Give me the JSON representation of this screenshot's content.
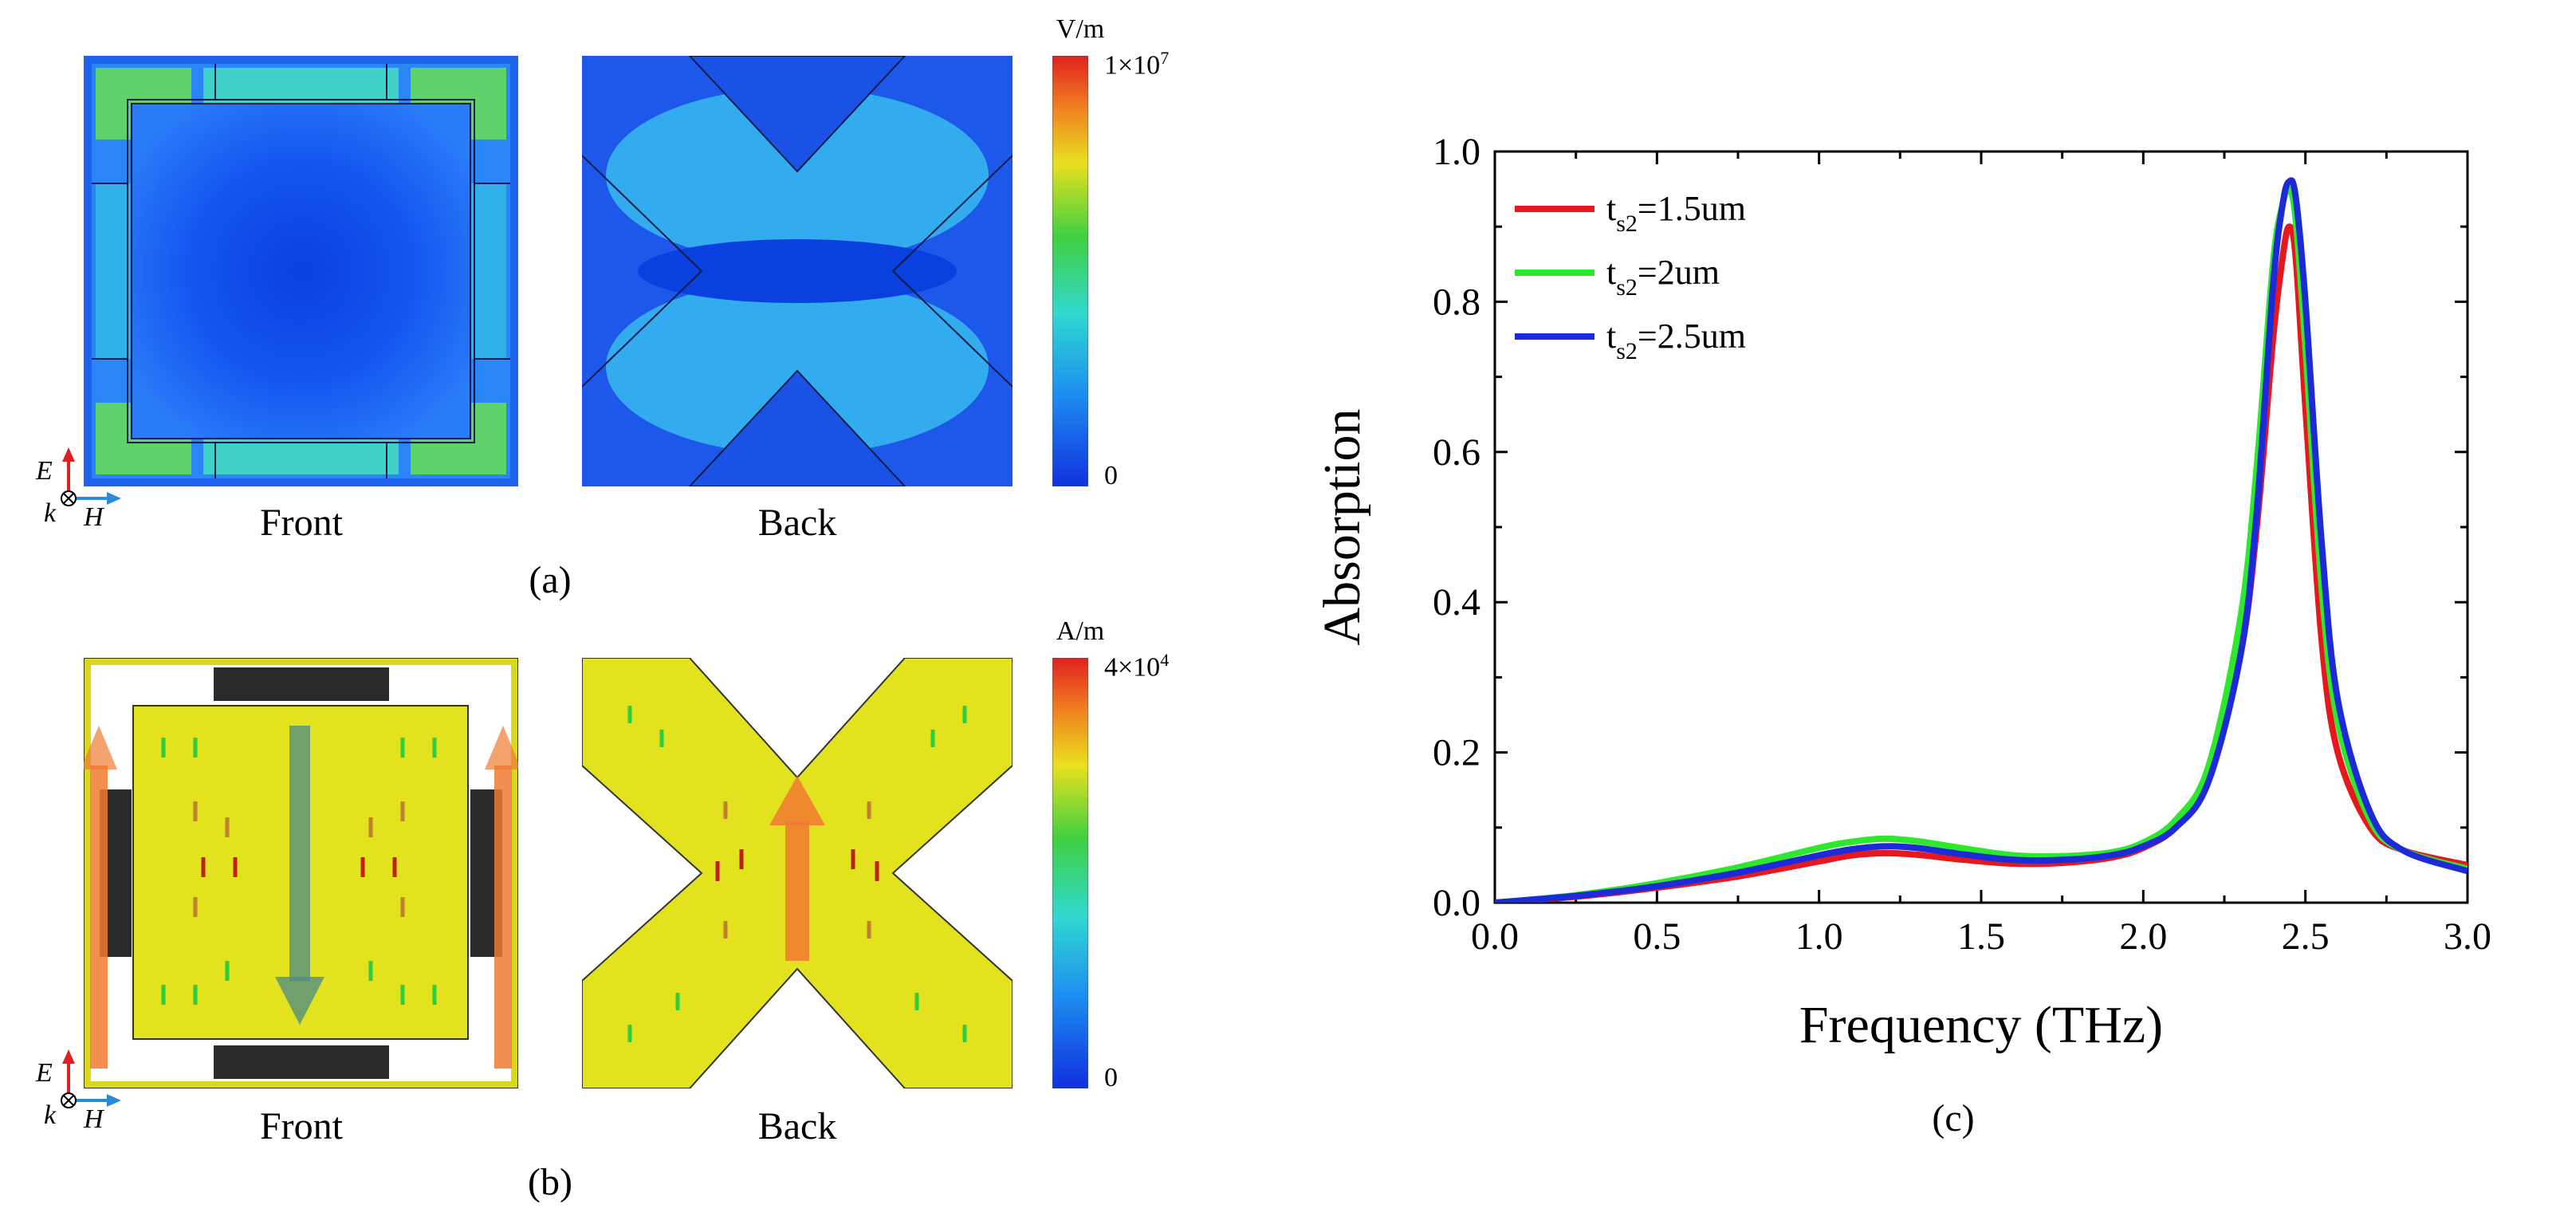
{
  "panel_a": {
    "label": "(a)",
    "front_caption": "Front",
    "back_caption": "Back",
    "colorbar": {
      "unit": "V/m",
      "max_base": "1×10",
      "max_exp": "7",
      "min": "0"
    },
    "axes": {
      "e": "E",
      "k": "k",
      "h": "H"
    }
  },
  "panel_b": {
    "label": "(b)",
    "front_caption": "Front",
    "back_caption": "Back",
    "colorbar": {
      "unit": "A/m",
      "max_base": "4×10",
      "max_exp": "4",
      "min": "0"
    },
    "axes": {
      "e": "E",
      "k": "k",
      "h": "H"
    }
  },
  "panel_c": {
    "label": "(c)"
  },
  "chart_data": {
    "type": "line",
    "title": "",
    "xlabel": "Frequency (THz)",
    "ylabel": "Absorption",
    "xlim": [
      0,
      3.0
    ],
    "ylim": [
      0,
      1.0
    ],
    "xticks": [
      "0.0",
      "0.5",
      "1.0",
      "1.5",
      "2.0",
      "2.5",
      "3.0"
    ],
    "yticks": [
      "0.0",
      "0.2",
      "0.4",
      "0.6",
      "0.8",
      "1.0"
    ],
    "legend_position": "top-left",
    "series": [
      {
        "name": "t_s2=1.5um",
        "legend_main": "t",
        "legend_sub": "s2",
        "legend_rest": "=1.5um",
        "color": "#e8161d",
        "x": [
          0,
          0.25,
          0.5,
          0.75,
          1.0,
          1.1,
          1.2,
          1.3,
          1.45,
          1.6,
          1.75,
          1.9,
          2.0,
          2.1,
          2.2,
          2.3,
          2.35,
          2.4,
          2.43,
          2.45,
          2.47,
          2.5,
          2.55,
          2.6,
          2.7,
          2.8,
          3.0
        ],
        "y": [
          0,
          0.008,
          0.02,
          0.035,
          0.055,
          0.063,
          0.066,
          0.064,
          0.057,
          0.052,
          0.053,
          0.06,
          0.073,
          0.1,
          0.16,
          0.33,
          0.5,
          0.75,
          0.86,
          0.9,
          0.86,
          0.66,
          0.35,
          0.2,
          0.1,
          0.07,
          0.05
        ]
      },
      {
        "name": "t_s2=2um",
        "legend_main": "t",
        "legend_sub": "s2",
        "legend_rest": "=2um",
        "color": "#2ee82e",
        "x": [
          0,
          0.25,
          0.5,
          0.75,
          1.0,
          1.1,
          1.2,
          1.3,
          1.45,
          1.6,
          1.75,
          1.9,
          2.0,
          2.1,
          2.2,
          2.3,
          2.35,
          2.4,
          2.43,
          2.45,
          2.47,
          2.5,
          2.55,
          2.6,
          2.7,
          2.8,
          3.0
        ],
        "y": [
          0,
          0.01,
          0.026,
          0.047,
          0.073,
          0.081,
          0.085,
          0.082,
          0.072,
          0.063,
          0.062,
          0.067,
          0.08,
          0.11,
          0.18,
          0.38,
          0.58,
          0.85,
          0.93,
          0.95,
          0.91,
          0.74,
          0.42,
          0.24,
          0.11,
          0.07,
          0.045
        ]
      },
      {
        "name": "t_s2=2.5um",
        "legend_main": "t",
        "legend_sub": "s2",
        "legend_rest": "=2.5um",
        "color": "#1c2ad8",
        "x": [
          0,
          0.25,
          0.5,
          0.75,
          1.0,
          1.1,
          1.2,
          1.3,
          1.45,
          1.6,
          1.75,
          1.9,
          2.0,
          2.1,
          2.2,
          2.3,
          2.35,
          2.4,
          2.43,
          2.45,
          2.47,
          2.5,
          2.55,
          2.6,
          2.7,
          2.8,
          3.0
        ],
        "y": [
          0,
          0.009,
          0.022,
          0.04,
          0.063,
          0.071,
          0.075,
          0.073,
          0.064,
          0.057,
          0.057,
          0.063,
          0.075,
          0.1,
          0.16,
          0.33,
          0.52,
          0.82,
          0.93,
          0.96,
          0.94,
          0.8,
          0.48,
          0.27,
          0.12,
          0.07,
          0.042
        ]
      }
    ]
  }
}
